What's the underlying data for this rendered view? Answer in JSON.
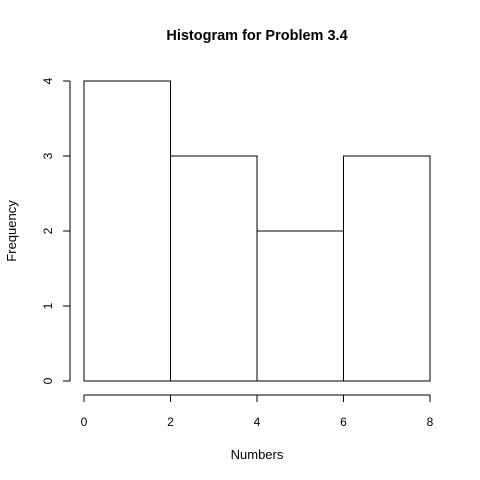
{
  "chart_data": {
    "type": "bar",
    "title": "Histogram for Problem 3.4",
    "xlabel": "Numbers",
    "ylabel": "Frequency",
    "bins": [
      {
        "start": 0,
        "end": 2,
        "count": 4
      },
      {
        "start": 2,
        "end": 4,
        "count": 3
      },
      {
        "start": 4,
        "end": 6,
        "count": 2
      },
      {
        "start": 6,
        "end": 8,
        "count": 3
      }
    ],
    "x_ticks": [
      "0",
      "2",
      "4",
      "6",
      "8"
    ],
    "y_ticks": [
      "0",
      "1",
      "2",
      "3",
      "4"
    ],
    "xlim": [
      0,
      8
    ],
    "ylim": [
      0,
      4
    ],
    "grid": false,
    "legend": "none"
  }
}
